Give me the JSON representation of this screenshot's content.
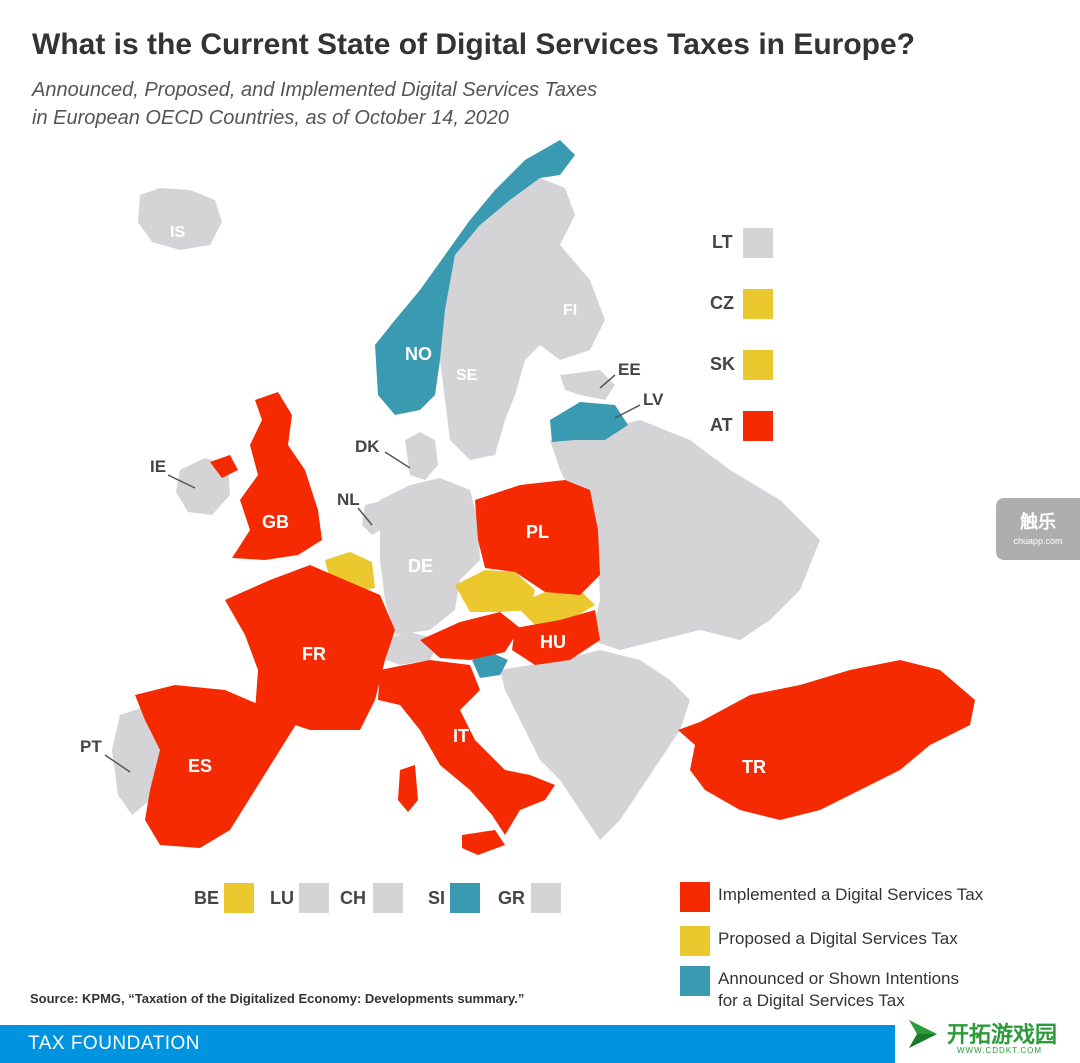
{
  "title": "What is the Current State of Digital Services Taxes in Europe?",
  "subtitle_line1": "Announced, Proposed, and Implemented Digital Services Taxes",
  "subtitle_line2": "in European OECD Countries, as of October 14, 2020",
  "colors": {
    "implemented": "#f52a00",
    "proposed": "#ebc92e",
    "announced": "#3a9ab2",
    "none": "#d4d4d6"
  },
  "map_labels": {
    "IS": "IS",
    "NO": "NO",
    "SE": "SE",
    "FI": "FI",
    "EE": "EE",
    "LV": "LV",
    "DK": "DK",
    "IE": "IE",
    "GB": "GB",
    "NL": "NL",
    "DE": "DE",
    "PL": "PL",
    "FR": "FR",
    "HU": "HU",
    "IT": "IT",
    "PT": "PT",
    "ES": "ES",
    "TR": "TR"
  },
  "side_squares": [
    {
      "code": "LT",
      "status": "none"
    },
    {
      "code": "CZ",
      "status": "proposed"
    },
    {
      "code": "SK",
      "status": "proposed"
    },
    {
      "code": "AT",
      "status": "implemented"
    }
  ],
  "bottom_squares": [
    {
      "code": "BE",
      "status": "proposed"
    },
    {
      "code": "LU",
      "status": "none"
    },
    {
      "code": "CH",
      "status": "none"
    },
    {
      "code": "SI",
      "status": "announced"
    },
    {
      "code": "GR",
      "status": "none"
    }
  ],
  "legend": {
    "implemented": "Implemented a Digital Services Tax",
    "proposed": "Proposed a Digital Services Tax",
    "announced_line1": "Announced or Shown Intentions",
    "announced_line2": "for a Digital Services Tax"
  },
  "source": "Source: KPMG, “Taxation of the Digitalized Economy: Developments summary.”",
  "footer_org": "TAX FOUNDATION",
  "watermark_right": {
    "line1": "触乐",
    "line2": "chuapp.com"
  },
  "watermark_bottom": {
    "name": "开拓游戏园",
    "url": "WWW.CDDKT.COM"
  }
}
